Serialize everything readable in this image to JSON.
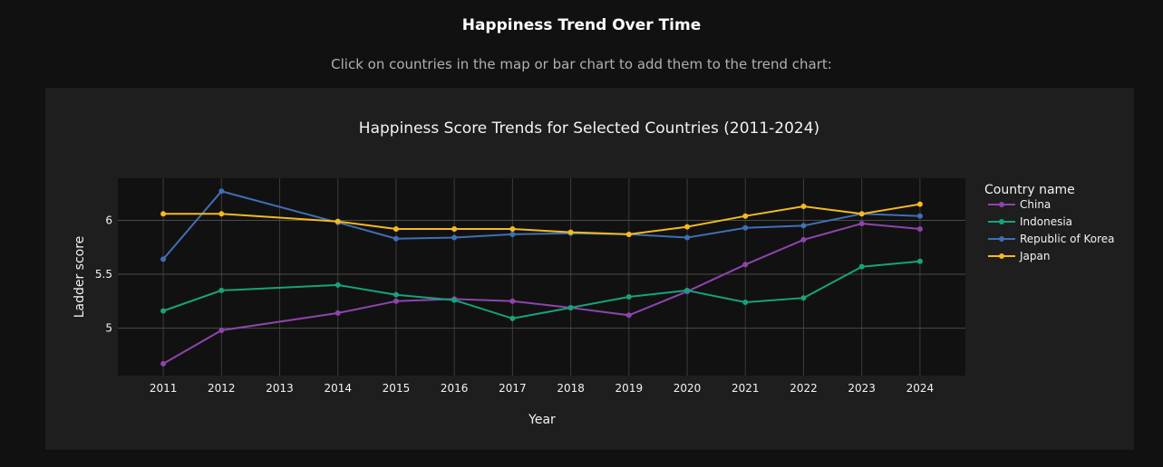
{
  "page": {
    "title": "Happiness Trend Over Time",
    "subtitle": "Click on countries in the map or bar chart to add them to the trend chart:"
  },
  "chart_data": {
    "type": "line",
    "title": "Happiness Score Trends for Selected Countries (2011-2024)",
    "xlabel": "Year",
    "ylabel": "Ladder score",
    "x_ticks": [
      2011,
      2012,
      2013,
      2014,
      2015,
      2016,
      2017,
      2018,
      2019,
      2020,
      2021,
      2022,
      2023,
      2024
    ],
    "y_ticks": [
      5,
      5.5,
      6
    ],
    "xlim": [
      2010.22,
      2024.78
    ],
    "ylim": [
      4.56,
      6.39
    ],
    "grid": true,
    "legend_title": "Country name",
    "legend_position": "right",
    "series": [
      {
        "name": "China",
        "color": "#8e44ad",
        "x": [
          2011,
          2012,
          2014,
          2015,
          2016,
          2017,
          2018,
          2019,
          2020,
          2021,
          2022,
          2023,
          2024
        ],
        "y": [
          4.67,
          4.98,
          5.14,
          5.25,
          5.27,
          5.25,
          5.19,
          5.12,
          5.34,
          5.59,
          5.82,
          5.97,
          5.92
        ]
      },
      {
        "name": "Indonesia",
        "color": "#17a37b",
        "x": [
          2011,
          2012,
          2014,
          2015,
          2016,
          2017,
          2018,
          2019,
          2020,
          2021,
          2022,
          2023,
          2024
        ],
        "y": [
          5.16,
          5.35,
          5.4,
          5.31,
          5.26,
          5.09,
          5.19,
          5.29,
          5.35,
          5.24,
          5.28,
          5.57,
          5.62
        ]
      },
      {
        "name": "Republic of Korea",
        "color": "#3f6fb5",
        "x": [
          2011,
          2012,
          2014,
          2015,
          2016,
          2017,
          2018,
          2019,
          2020,
          2021,
          2022,
          2023,
          2024
        ],
        "y": [
          5.64,
          6.27,
          5.98,
          5.83,
          5.84,
          5.87,
          5.88,
          5.87,
          5.84,
          5.93,
          5.95,
          6.06,
          6.04
        ]
      },
      {
        "name": "Japan",
        "color": "#f5b921",
        "x": [
          2011,
          2012,
          2014,
          2015,
          2016,
          2017,
          2018,
          2019,
          2020,
          2021,
          2022,
          2023,
          2024
        ],
        "y": [
          6.06,
          6.06,
          5.99,
          5.92,
          5.92,
          5.92,
          5.89,
          5.87,
          5.94,
          6.04,
          6.13,
          6.06,
          6.15
        ]
      }
    ]
  }
}
